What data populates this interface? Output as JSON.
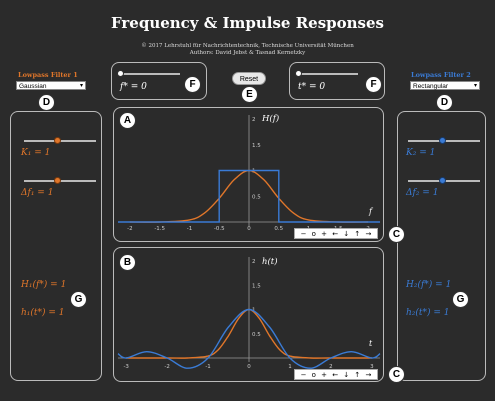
{
  "header": {
    "title": "Frequency & Impulse Responses",
    "credit_line1": "© 2017 Lehrstuhl für Nachrichtentechnik, Technische Universität München",
    "credit_line2": "Authors: David Jebst & Tasnad Kernetzky"
  },
  "filter1": {
    "title": "Lowpass Filter 1",
    "type": "Gaussian",
    "k_label": "K₁ = 1",
    "df_label": "Δf₁ = 1",
    "H_label": "H₁(f*) = 1",
    "h_label": "h₁(t*) = 1",
    "color": "#e0762a"
  },
  "filter2": {
    "title": "Lowpass Filter 2",
    "type": "Rectangular",
    "k_label": "K₂ = 1",
    "df_label": "Δf₂ = 1",
    "H_label": "H₂(f*) = 1",
    "h_label": "h₂(t*) = 1",
    "color": "#3a7bd5"
  },
  "controls": {
    "f_star_label": "f* = 0",
    "t_star_label": "t* = 0",
    "reset_label": "Reset"
  },
  "markers": {
    "A": "A",
    "B": "B",
    "C": "C",
    "D": "D",
    "E": "E",
    "F": "F",
    "G": "G"
  },
  "toolbar_icons": [
    "−",
    "o",
    "+",
    "←",
    "↓",
    "↑",
    "→"
  ],
  "chart_data": [
    {
      "type": "line",
      "title": "H(f)",
      "xlabel": "f",
      "xlim": [
        -2.2,
        2.2
      ],
      "ylim": [
        0,
        2
      ],
      "x_ticks": [
        "-2",
        "-1.5",
        "-1",
        "-0.5",
        "0",
        "0.5",
        "1",
        "1.5",
        "2"
      ],
      "y_ticks": [
        "0.5",
        "1",
        "1.5",
        "2"
      ],
      "series": [
        {
          "name": "Gaussian",
          "color": "#e0762a",
          "x": [
            -2,
            -1.5,
            -1,
            -0.75,
            -0.5,
            -0.25,
            0,
            0.25,
            0.5,
            0.75,
            1,
            1.5,
            2
          ],
          "y": [
            0,
            0,
            0.04,
            0.17,
            0.46,
            0.82,
            1,
            0.82,
            0.46,
            0.17,
            0.04,
            0,
            0
          ]
        },
        {
          "name": "Rectangular",
          "color": "#3a7bd5",
          "x": [
            -2.2,
            -0.5,
            -0.5,
            0.5,
            0.5,
            2.2
          ],
          "y": [
            0,
            0,
            1,
            1,
            0,
            0
          ]
        }
      ]
    },
    {
      "type": "line",
      "title": "h(t)",
      "xlabel": "t",
      "xlim": [
        -3.2,
        3.2
      ],
      "ylim": [
        -0.3,
        2
      ],
      "x_ticks": [
        "-3",
        "-2",
        "-1",
        "0",
        "1",
        "2",
        "3"
      ],
      "y_ticks": [
        "0.5",
        "1",
        "1.5",
        "2"
      ],
      "series": [
        {
          "name": "Gaussian",
          "color": "#e0762a",
          "x": [
            -3,
            -2,
            -1.5,
            -1,
            -0.75,
            -0.5,
            -0.25,
            0,
            0.25,
            0.5,
            0.75,
            1,
            1.5,
            2,
            3
          ],
          "y": [
            0,
            0,
            0,
            0.04,
            0.17,
            0.46,
            0.82,
            1,
            0.82,
            0.46,
            0.17,
            0.04,
            0,
            0,
            0
          ]
        },
        {
          "name": "Rectangular",
          "color": "#3a7bd5",
          "x": [
            -3.2,
            -3,
            -2.5,
            -2,
            -1.5,
            -1,
            -0.5,
            0,
            0.5,
            1,
            1.5,
            2,
            2.5,
            3,
            3.2
          ],
          "y": [
            0.09,
            0,
            0.13,
            0,
            -0.21,
            0,
            0.64,
            1,
            0.64,
            0,
            -0.21,
            0,
            0.13,
            0,
            0.09
          ]
        }
      ]
    }
  ]
}
